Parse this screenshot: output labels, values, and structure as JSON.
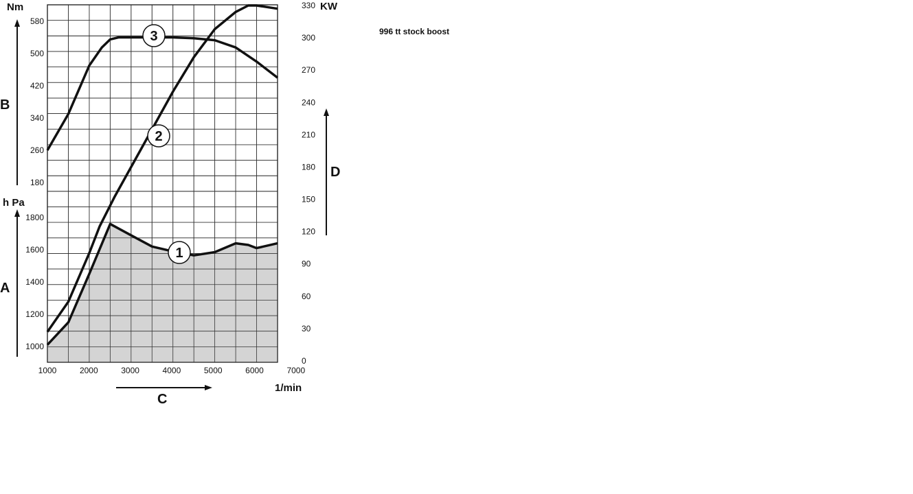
{
  "note": "996 tt stock boost",
  "chart_data": {
    "type": "line",
    "x_unit": "1/min",
    "x_label": "C",
    "x_ticks": [
      1000,
      2000,
      3000,
      4000,
      5000,
      6000,
      7000
    ],
    "xlim": [
      1000,
      7000
    ],
    "axes": {
      "torque": {
        "unit": "Nm",
        "letter": "B",
        "ticks": [
          180,
          260,
          340,
          420,
          500,
          580
        ]
      },
      "pressure": {
        "unit": "h Pa",
        "letter": "A",
        "ticks": [
          1000,
          1200,
          1400,
          1600,
          1800
        ]
      },
      "power": {
        "unit": "KW",
        "letter": "D",
        "ticks": [
          0,
          30,
          60,
          90,
          120,
          150,
          180,
          210,
          240,
          270,
          300,
          330
        ],
        "ylim": [
          0,
          330
        ]
      }
    },
    "series": [
      {
        "name": "1",
        "axis": "pressure",
        "filled": true,
        "x": [
          1000,
          1500,
          2000,
          2500,
          3000,
          3500,
          4000,
          4500,
          5000,
          5500,
          5800,
          6000,
          6500
        ],
        "y": [
          1010,
          1150,
          1450,
          1760,
          1690,
          1620,
          1590,
          1565,
          1585,
          1640,
          1630,
          1610,
          1640
        ]
      },
      {
        "name": "2",
        "axis": "power",
        "x": [
          1000,
          1500,
          2000,
          2250,
          2600,
          3000,
          3500,
          4000,
          4500,
          5000,
          5500,
          5800,
          6000,
          6500
        ],
        "y": [
          27,
          55,
          100,
          125,
          152,
          180,
          215,
          250,
          282,
          308,
          324,
          330,
          330,
          327
        ],
        "note": "curve rises from 27 kW at 1000 to ~330 kW plateau near 6000 1/min"
      },
      {
        "name": "3",
        "axis": "torque",
        "x": [
          1000,
          1500,
          2000,
          2300,
          2500,
          2700,
          3000,
          3500,
          4000,
          4500,
          5000,
          5500,
          6000,
          6500
        ],
        "y": [
          260,
          350,
          470,
          515,
          535,
          540,
          540,
          540,
          540,
          538,
          533,
          515,
          480,
          440
        ]
      }
    ]
  }
}
